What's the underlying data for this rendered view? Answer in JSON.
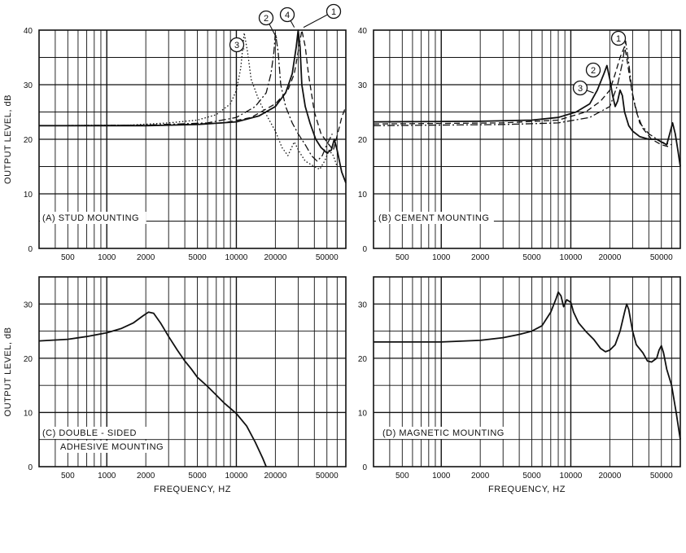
{
  "chart_data": [
    {
      "id": "A",
      "type": "line",
      "panel_label": "(A) STUD MOUNTING",
      "ylabel": "OUTPUT LEVEL, dB",
      "xlabel": "",
      "xscale": "log",
      "xlim": [
        300,
        70000
      ],
      "ylim": [
        0,
        40
      ],
      "yticks": [
        0,
        10,
        20,
        30,
        40
      ],
      "xticks": [
        {
          "v": 500,
          "label": "500"
        },
        {
          "v": 1000,
          "label": "1000"
        },
        {
          "v": 2000,
          "label": "2000"
        },
        {
          "v": 5000,
          "label": "5000"
        },
        {
          "v": 10000,
          "label": "10000"
        },
        {
          "v": 20000,
          "label": "20000"
        },
        {
          "v": 50000,
          "label": "50000"
        }
      ],
      "callouts": [
        {
          "label": "1",
          "x": 33000,
          "y": 40.5
        },
        {
          "label": "2",
          "x": 20500,
          "y": 38.5
        },
        {
          "label": "3",
          "x": 11500,
          "y": 36.5
        },
        {
          "label": "4",
          "x": 28000,
          "y": 40.5
        }
      ],
      "series": [
        {
          "style": "solid",
          "points": [
            [
              300,
              22.5
            ],
            [
              2000,
              22.5
            ],
            [
              5000,
              22.7
            ],
            [
              10000,
              23.2
            ],
            [
              15000,
              24.3
            ],
            [
              20000,
              26
            ],
            [
              24000,
              28.5
            ],
            [
              27000,
              32
            ],
            [
              29000,
              37
            ],
            [
              30000,
              40
            ],
            [
              31000,
              37
            ],
            [
              32000,
              30
            ],
            [
              34000,
              26
            ],
            [
              37000,
              23
            ],
            [
              41000,
              20
            ],
            [
              45000,
              18.5
            ],
            [
              50000,
              17.5
            ],
            [
              54000,
              18
            ],
            [
              57000,
              20
            ],
            [
              60000,
              18
            ],
            [
              65000,
              14
            ],
            [
              70000,
              12
            ]
          ]
        },
        {
          "style": "dash",
          "points": [
            [
              300,
              22.5
            ],
            [
              3000,
              22.6
            ],
            [
              8000,
              23
            ],
            [
              13000,
              24
            ],
            [
              20000,
              26.5
            ],
            [
              25000,
              29
            ],
            [
              28000,
              32
            ],
            [
              30000,
              36
            ],
            [
              32000,
              40
            ],
            [
              34000,
              37
            ],
            [
              36000,
              32
            ],
            [
              40000,
              25
            ],
            [
              45000,
              21
            ],
            [
              50000,
              19.5
            ],
            [
              56000,
              18
            ],
            [
              62000,
              22
            ],
            [
              65000,
              24
            ],
            [
              70000,
              26
            ]
          ]
        },
        {
          "style": "dashdot",
          "points": [
            [
              300,
              22.5
            ],
            [
              2000,
              22.6
            ],
            [
              6000,
              23
            ],
            [
              10000,
              24
            ],
            [
              14000,
              26
            ],
            [
              17000,
              28.5
            ],
            [
              18500,
              32
            ],
            [
              19500,
              36
            ],
            [
              20000,
              39.5
            ],
            [
              21000,
              36
            ],
            [
              22000,
              30
            ],
            [
              24000,
              26
            ],
            [
              27000,
              23
            ],
            [
              30000,
              21
            ],
            [
              34000,
              19
            ],
            [
              38000,
              17
            ],
            [
              42000,
              16
            ],
            [
              46000,
              17
            ],
            [
              50000,
              19
            ],
            [
              55000,
              21
            ]
          ]
        },
        {
          "style": "dotted",
          "points": [
            [
              300,
              22.5
            ],
            [
              1500,
              22.6
            ],
            [
              3000,
              23
            ],
            [
              5000,
              23.5
            ],
            [
              7000,
              24.5
            ],
            [
              9000,
              26.5
            ],
            [
              10000,
              29
            ],
            [
              10800,
              33
            ],
            [
              11500,
              39.5
            ],
            [
              12200,
              36
            ],
            [
              13000,
              31
            ],
            [
              15000,
              27
            ],
            [
              17500,
              24
            ],
            [
              20000,
              21.5
            ],
            [
              22500,
              18.5
            ],
            [
              25000,
              17
            ],
            [
              28000,
              19.5
            ],
            [
              31000,
              17.5
            ],
            [
              34000,
              16
            ],
            [
              40000,
              15
            ],
            [
              44000,
              14.5
            ],
            [
              48000,
              16
            ],
            [
              52000,
              18
            ],
            [
              56000,
              17
            ],
            [
              60000,
              15
            ]
          ]
        }
      ]
    },
    {
      "id": "B",
      "type": "line",
      "panel_label": "(B) CEMENT MOUNTING",
      "ylabel": "",
      "xlabel": "",
      "xscale": "log",
      "xlim": [
        300,
        70000
      ],
      "ylim": [
        0,
        40
      ],
      "yticks": [
        0,
        10,
        20,
        30,
        40
      ],
      "xticks": [
        {
          "v": 500,
          "label": "500"
        },
        {
          "v": 1000,
          "label": "1000"
        },
        {
          "v": 2000,
          "label": "2000"
        },
        {
          "v": 5000,
          "label": "5000"
        },
        {
          "v": 10000,
          "label": "10000"
        },
        {
          "v": 20000,
          "label": "20000"
        },
        {
          "v": 50000,
          "label": "50000"
        }
      ],
      "callouts": [
        {
          "label": "1",
          "x": 24000,
          "y": 37.5
        },
        {
          "label": "2",
          "x": 17000,
          "y": 32.5
        },
        {
          "label": "3",
          "x": 15000,
          "y": 28.5
        }
      ],
      "series": [
        {
          "style": "solid",
          "points": [
            [
              300,
              23.2
            ],
            [
              2000,
              23.3
            ],
            [
              5000,
              23.5
            ],
            [
              8000,
              24
            ],
            [
              11000,
              25
            ],
            [
              14000,
              26.5
            ],
            [
              16000,
              29
            ],
            [
              18000,
              32
            ],
            [
              19000,
              33.5
            ],
            [
              20000,
              31
            ],
            [
              21000,
              28
            ],
            [
              22000,
              26
            ],
            [
              23000,
              27
            ],
            [
              24000,
              29
            ],
            [
              25000,
              28
            ],
            [
              26000,
              25
            ],
            [
              28000,
              22.5
            ],
            [
              30000,
              21.5
            ],
            [
              34000,
              20.5
            ],
            [
              40000,
              20
            ],
            [
              46000,
              20
            ],
            [
              50000,
              19.5
            ],
            [
              55000,
              19
            ],
            [
              58000,
              21
            ],
            [
              61000,
              23
            ],
            [
              64000,
              21
            ],
            [
              67000,
              18
            ],
            [
              70000,
              15
            ]
          ]
        },
        {
          "style": "dash",
          "points": [
            [
              300,
              22.8
            ],
            [
              3000,
              23
            ],
            [
              8000,
              23.5
            ],
            [
              13000,
              25
            ],
            [
              17000,
              27
            ],
            [
              20000,
              29
            ],
            [
              22000,
              32
            ],
            [
              24000,
              35
            ],
            [
              26000,
              37
            ],
            [
              27000,
              35
            ],
            [
              29000,
              30
            ],
            [
              32000,
              25
            ],
            [
              36000,
              22
            ],
            [
              42000,
              20
            ],
            [
              50000,
              19
            ],
            [
              60000,
              18.5
            ]
          ]
        },
        {
          "style": "dashdot",
          "points": [
            [
              300,
              22.5
            ],
            [
              3000,
              22.7
            ],
            [
              8000,
              23
            ],
            [
              14000,
              24
            ],
            [
              20000,
              26
            ],
            [
              23000,
              30
            ],
            [
              25000,
              34
            ],
            [
              26500,
              38
            ],
            [
              28000,
              34
            ],
            [
              30000,
              28
            ],
            [
              34000,
              23
            ],
            [
              40000,
              21
            ],
            [
              50000,
              19.5
            ],
            [
              60000,
              19
            ]
          ]
        }
      ]
    },
    {
      "id": "C",
      "type": "line",
      "panel_label": "(C) DOUBLE - SIDED",
      "panel_label_2": "ADHESIVE MOUNTING",
      "ylabel": "OUTPUT LEVEL, dB",
      "xlabel": "FREQUENCY, HZ",
      "xscale": "log",
      "xlim": [
        300,
        70000
      ],
      "ylim": [
        0,
        35
      ],
      "yticks": [
        0,
        10,
        20,
        30
      ],
      "xticks": [
        {
          "v": 500,
          "label": "500"
        },
        {
          "v": 1000,
          "label": "1000"
        },
        {
          "v": 2000,
          "label": "2000"
        },
        {
          "v": 5000,
          "label": "5000"
        },
        {
          "v": 10000,
          "label": "10000"
        },
        {
          "v": 20000,
          "label": "20000"
        },
        {
          "v": 50000,
          "label": "50000"
        }
      ],
      "callouts": [],
      "series": [
        {
          "style": "solid",
          "points": [
            [
              300,
              23.2
            ],
            [
              500,
              23.5
            ],
            [
              700,
              24
            ],
            [
              1000,
              24.7
            ],
            [
              1300,
              25.5
            ],
            [
              1600,
              26.5
            ],
            [
              1900,
              27.8
            ],
            [
              2100,
              28.5
            ],
            [
              2300,
              28.3
            ],
            [
              2600,
              26.5
            ],
            [
              3000,
              24
            ],
            [
              3500,
              21.5
            ],
            [
              4000,
              19.5
            ],
            [
              4500,
              18
            ],
            [
              5000,
              16.5
            ],
            [
              6000,
              14.8
            ],
            [
              7000,
              13.2
            ],
            [
              8000,
              11.8
            ],
            [
              10000,
              9.8
            ],
            [
              12000,
              7.5
            ],
            [
              14000,
              4.5
            ],
            [
              16000,
              1.5
            ],
            [
              17000,
              0
            ]
          ]
        }
      ]
    },
    {
      "id": "D",
      "type": "line",
      "panel_label": "(D) MAGNETIC MOUNTING",
      "ylabel": "",
      "xlabel": "FREQUENCY, HZ",
      "xscale": "log",
      "xlim": [
        300,
        70000
      ],
      "ylim": [
        0,
        35
      ],
      "yticks": [
        0,
        10,
        20,
        30
      ],
      "xticks": [
        {
          "v": 500,
          "label": "500"
        },
        {
          "v": 1000,
          "label": "1000"
        },
        {
          "v": 2000,
          "label": "2000"
        },
        {
          "v": 5000,
          "label": "5000"
        },
        {
          "v": 10000,
          "label": "10000"
        },
        {
          "v": 20000,
          "label": "20000"
        },
        {
          "v": 50000,
          "label": "50000"
        }
      ],
      "callouts": [],
      "series": [
        {
          "style": "solid",
          "points": [
            [
              300,
              23
            ],
            [
              1000,
              23
            ],
            [
              2000,
              23.3
            ],
            [
              3000,
              23.8
            ],
            [
              4000,
              24.4
            ],
            [
              5000,
              25
            ],
            [
              6000,
              26
            ],
            [
              7000,
              28.5
            ],
            [
              7700,
              31
            ],
            [
              8000,
              32.2
            ],
            [
              8400,
              31.5
            ],
            [
              8800,
              29.5
            ],
            [
              9300,
              30.8
            ],
            [
              10000,
              30.3
            ],
            [
              10500,
              28.5
            ],
            [
              11500,
              26.5
            ],
            [
              13000,
              25
            ],
            [
              15000,
              23.5
            ],
            [
              17000,
              21.8
            ],
            [
              18500,
              21.2
            ],
            [
              20000,
              21.5
            ],
            [
              22000,
              22.5
            ],
            [
              24000,
              25
            ],
            [
              26000,
              28.5
            ],
            [
              27000,
              30
            ],
            [
              28000,
              29
            ],
            [
              30000,
              25
            ],
            [
              32000,
              22.5
            ],
            [
              36000,
              21
            ],
            [
              39000,
              19.5
            ],
            [
              42000,
              19.3
            ],
            [
              46000,
              20
            ],
            [
              48000,
              21.5
            ],
            [
              50000,
              22.3
            ],
            [
              52000,
              21
            ],
            [
              55000,
              18
            ],
            [
              60000,
              15
            ],
            [
              65000,
              10
            ],
            [
              70000,
              5
            ]
          ]
        }
      ]
    }
  ]
}
